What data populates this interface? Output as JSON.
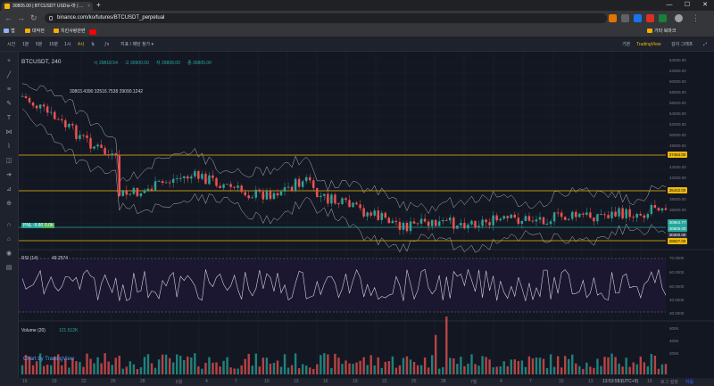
{
  "tab": {
    "title": "30805.00 | BTCUSDT USD⊖-마 | ..."
  },
  "window": {
    "min": "—",
    "max": "☐",
    "close": "✕"
  },
  "address": {
    "url": "binance.com/ko/futures/BTCUSDT_perpetual"
  },
  "bookmarks": [
    "앱",
    "대작전",
    "치킨사랑관련"
  ],
  "bookmarks_right": [
    "기타 북마크"
  ],
  "toolbar": {
    "intervals": [
      "시간",
      "1분",
      "5분",
      "15분",
      "1시",
      "4시"
    ],
    "active_interval": "4시",
    "indicators": "지표 / 패턴 첨가 ▾",
    "right": [
      "기본",
      "TradingView",
      "깊이 그래프"
    ]
  },
  "legend": {
    "symbol": "BTCUSDT, 240",
    "open": "시 29818.54",
    "high": "고 30900.00",
    "low": "저 29808.00",
    "close": "종 30805.00",
    "bb": "30803.4390  32516.7538  29090.1242"
  },
  "price_ticks": [
    "64000.00",
    "62000.00",
    "60000.00",
    "58000.00",
    "56000.00",
    "54000.00",
    "52000.00",
    "50000.00",
    "48000.00",
    "46000.00",
    "44000.00",
    "42000.00",
    "40000.00",
    "38000.00",
    "36000.00",
    "34000.00",
    "32000.00",
    "30000.00",
    "28000.00"
  ],
  "price_labels": {
    "a": "37464.00",
    "b": "35442.00",
    "c": "30864.77",
    "d": "30805.00",
    "e": "30300.00",
    "f": "28827.00"
  },
  "pnl": {
    "label": "PNL -9.80",
    "tag": "0.0k"
  },
  "rsi": {
    "label": "RSI (14)",
    "value": "49.2574",
    "ticks": [
      "70.0000",
      "60.0000",
      "50.0000",
      "40.0000",
      "30.0000"
    ]
  },
  "volume": {
    "label": "Volume (20)",
    "value": "121.512K",
    "ticks": [
      "600K",
      "400K",
      "200K"
    ]
  },
  "watermark": "Chart by TradingView",
  "time_axis": [
    "16",
    "19",
    "22",
    "25",
    "28",
    "6월",
    "4",
    "7",
    "10",
    "13",
    "16",
    "19",
    "22",
    "25",
    "28",
    "7월",
    "4",
    "7",
    "10",
    "13",
    "16",
    "19"
  ],
  "status": {
    "clock": "13:53:55 (UTC+9)",
    "log": "로그 설정",
    "auto": "자동"
  }
}
